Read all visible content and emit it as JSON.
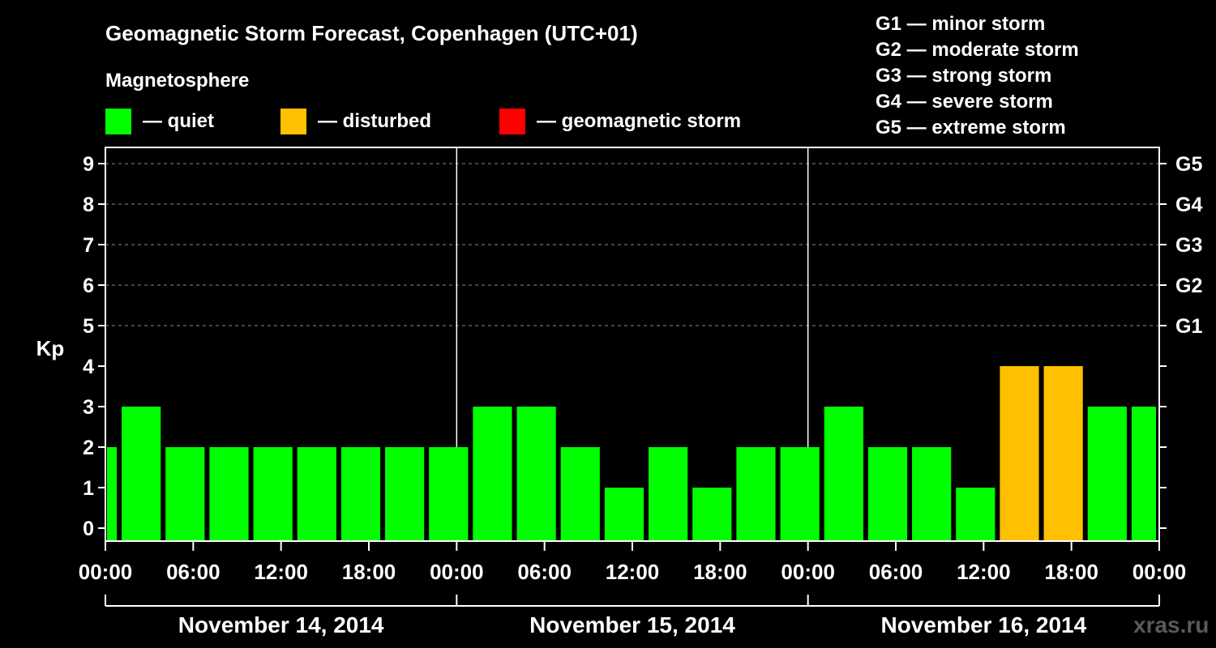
{
  "title": "Geomagnetic Storm Forecast, Copenhagen (UTC+01)",
  "magnetosphere_title": "Magnetosphere",
  "legend": [
    {
      "label": "— quiet",
      "color": "#00ff00"
    },
    {
      "label": "— disturbed",
      "color": "#ffc000"
    },
    {
      "label": "— geomagnetic storm",
      "color": "#ff0000"
    }
  ],
  "storm_scale": [
    "G1 — minor storm",
    "G2 — moderate storm",
    "G3 — strong storm",
    "G4 — severe storm",
    "G5 — extreme storm"
  ],
  "watermark": "xras.ru",
  "chart_data": {
    "type": "bar",
    "ylabel": "Kp",
    "ylim": [
      0,
      9
    ],
    "yticks": [
      "0",
      "1",
      "2",
      "3",
      "4",
      "5",
      "6",
      "7",
      "8",
      "9"
    ],
    "right_ticks": [
      {
        "kp": 5,
        "label": "G1"
      },
      {
        "kp": 6,
        "label": "G2"
      },
      {
        "kp": 7,
        "label": "G3"
      },
      {
        "kp": 8,
        "label": "G4"
      },
      {
        "kp": 9,
        "label": "G5"
      }
    ],
    "xlim_hours": [
      0,
      72
    ],
    "xticks": [
      {
        "hour": 0,
        "label": "00:00"
      },
      {
        "hour": 6,
        "label": "06:00"
      },
      {
        "hour": 12,
        "label": "12:00"
      },
      {
        "hour": 18,
        "label": "18:00"
      },
      {
        "hour": 24,
        "label": "00:00"
      },
      {
        "hour": 30,
        "label": "06:00"
      },
      {
        "hour": 36,
        "label": "12:00"
      },
      {
        "hour": 42,
        "label": "18:00"
      },
      {
        "hour": 48,
        "label": "00:00"
      },
      {
        "hour": 54,
        "label": "06:00"
      },
      {
        "hour": 60,
        "label": "12:00"
      },
      {
        "hour": 66,
        "label": "18:00"
      },
      {
        "hour": 72,
        "label": "00:00"
      }
    ],
    "days": [
      "November 14, 2014",
      "November 15, 2014",
      "November 16, 2014"
    ],
    "bars": [
      {
        "start": 0,
        "end": 1,
        "kp": 2,
        "state": "quiet"
      },
      {
        "start": 1,
        "end": 4,
        "kp": 3,
        "state": "quiet"
      },
      {
        "start": 4,
        "end": 7,
        "kp": 2,
        "state": "quiet"
      },
      {
        "start": 7,
        "end": 10,
        "kp": 2,
        "state": "quiet"
      },
      {
        "start": 10,
        "end": 13,
        "kp": 2,
        "state": "quiet"
      },
      {
        "start": 13,
        "end": 16,
        "kp": 2,
        "state": "quiet"
      },
      {
        "start": 16,
        "end": 19,
        "kp": 2,
        "state": "quiet"
      },
      {
        "start": 19,
        "end": 22,
        "kp": 2,
        "state": "quiet"
      },
      {
        "start": 22,
        "end": 25,
        "kp": 2,
        "state": "quiet"
      },
      {
        "start": 25,
        "end": 28,
        "kp": 3,
        "state": "quiet"
      },
      {
        "start": 28,
        "end": 31,
        "kp": 3,
        "state": "quiet"
      },
      {
        "start": 31,
        "end": 34,
        "kp": 2,
        "state": "quiet"
      },
      {
        "start": 34,
        "end": 37,
        "kp": 1,
        "state": "quiet"
      },
      {
        "start": 37,
        "end": 40,
        "kp": 2,
        "state": "quiet"
      },
      {
        "start": 40,
        "end": 43,
        "kp": 1,
        "state": "quiet"
      },
      {
        "start": 43,
        "end": 46,
        "kp": 2,
        "state": "quiet"
      },
      {
        "start": 46,
        "end": 49,
        "kp": 2,
        "state": "quiet"
      },
      {
        "start": 49,
        "end": 52,
        "kp": 3,
        "state": "quiet"
      },
      {
        "start": 52,
        "end": 55,
        "kp": 2,
        "state": "quiet"
      },
      {
        "start": 55,
        "end": 58,
        "kp": 2,
        "state": "quiet"
      },
      {
        "start": 58,
        "end": 61,
        "kp": 1,
        "state": "quiet"
      },
      {
        "start": 61,
        "end": 64,
        "kp": 4,
        "state": "disturbed"
      },
      {
        "start": 64,
        "end": 67,
        "kp": 4,
        "state": "disturbed"
      },
      {
        "start": 67,
        "end": 70,
        "kp": 3,
        "state": "quiet"
      },
      {
        "start": 70,
        "end": 72,
        "kp": 3,
        "state": "quiet"
      }
    ],
    "state_colors": {
      "quiet": "#00ff00",
      "disturbed": "#ffc000",
      "storm": "#ff0000"
    },
    "grid": true
  }
}
